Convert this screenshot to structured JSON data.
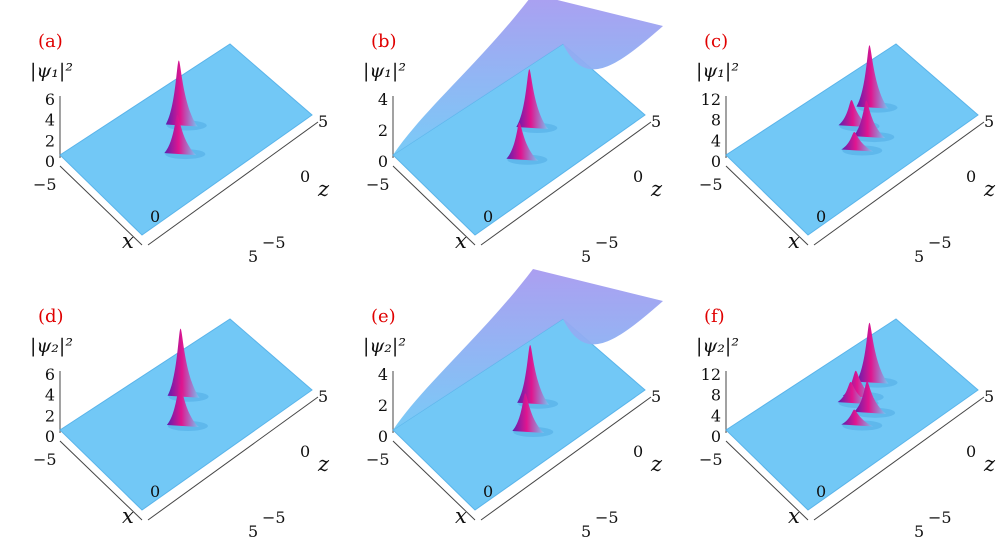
{
  "colors": {
    "surface": "#72c8f6",
    "surface_shade": "#5ab4ea",
    "bg_top": "#a79af0",
    "peak": "#e0158f",
    "peak_dark": "#5a1fb0",
    "label_red": "#e00000"
  },
  "chart_data": [
    {
      "type": "surface",
      "panel_label": "(a)",
      "zlabel": "|ψ₁|²",
      "xlabel": "x",
      "ylabel": "z",
      "xlim": [
        -5,
        5
      ],
      "ylim": [
        -5,
        5
      ],
      "zlim": [
        0,
        6
      ],
      "zticks": [
        "6",
        "4",
        "2",
        "0"
      ],
      "xticks": [
        "−5",
        "0",
        "5"
      ],
      "yticks": [
        "5",
        "0",
        "−5"
      ],
      "background": 0,
      "peaks": [
        {
          "x": 0.3,
          "z": 1.5,
          "height": 6.0
        },
        {
          "x": -0.8,
          "z": -0.6,
          "height": 3.5
        }
      ]
    },
    {
      "type": "surface",
      "panel_label": "(b)",
      "zlabel": "|ψ₁|²",
      "xlabel": "x",
      "ylabel": "z",
      "xlim": [
        -5,
        5
      ],
      "ylim": [
        -5,
        5
      ],
      "zlim": [
        0,
        4
      ],
      "zticks": [
        "4",
        "2",
        "0"
      ],
      "xticks": [
        "−5",
        "0",
        "5"
      ],
      "yticks": [
        "5",
        "0",
        "−5"
      ],
      "background": 1,
      "peaks": [
        {
          "x": 0.8,
          "z": 0.4,
          "height": 3.6
        },
        {
          "x": -0.7,
          "z": -1.5,
          "height": 2.2
        }
      ]
    },
    {
      "type": "surface",
      "panel_label": "(c)",
      "zlabel": "|ψ₁|²",
      "xlabel": "x",
      "ylabel": "z",
      "xlim": [
        -5,
        5
      ],
      "ylim": [
        -5,
        5
      ],
      "zlim": [
        0,
        12
      ],
      "zticks": [
        "12",
        "8",
        "4",
        "0"
      ],
      "xticks": [
        "−5",
        "0",
        "5"
      ],
      "yticks": [
        "5",
        "0",
        "−5"
      ],
      "background": 0,
      "peaks": [
        {
          "x": 1.8,
          "z": 1.6,
          "height": 11.5
        },
        {
          "x": 0.5,
          "z": 1.1,
          "height": 4.5
        },
        {
          "x": 0.6,
          "z": -0.5,
          "height": 6.5
        },
        {
          "x": -0.3,
          "z": -0.9,
          "height": 3.0
        }
      ]
    },
    {
      "type": "surface",
      "panel_label": "(d)",
      "zlabel": "|ψ₂|²",
      "xlabel": "x",
      "ylabel": "z",
      "xlim": [
        -5,
        5
      ],
      "ylim": [
        -5,
        5
      ],
      "zlim": [
        0,
        6
      ],
      "zticks": [
        "6",
        "4",
        "2",
        "0"
      ],
      "xticks": [
        "−5",
        "0",
        "5"
      ],
      "yticks": [
        "5",
        "0",
        "−5"
      ],
      "background": 0,
      "peaks": [
        {
          "x": 0.5,
          "z": 1.7,
          "height": 6.3
        },
        {
          "x": -0.6,
          "z": -0.5,
          "height": 3.8
        }
      ]
    },
    {
      "type": "surface",
      "panel_label": "(e)",
      "zlabel": "|ψ₂|²",
      "xlabel": "x",
      "ylabel": "z",
      "xlim": [
        -5,
        5
      ],
      "ylim": [
        -5,
        5
      ],
      "zlim": [
        0,
        4
      ],
      "zticks": [
        "4",
        "2",
        "0"
      ],
      "xticks": [
        "−5",
        "0",
        "5"
      ],
      "yticks": [
        "5",
        "0",
        "−5"
      ],
      "background": 1,
      "peaks": [
        {
          "x": 0.8,
          "z": 0.3,
          "height": 3.6
        },
        {
          "x": -0.4,
          "z": -1.6,
          "height": 2.3
        }
      ]
    },
    {
      "type": "surface",
      "panel_label": "(f)",
      "zlabel": "|ψ₂|²",
      "xlabel": "x",
      "ylabel": "z",
      "xlim": [
        -5,
        5
      ],
      "ylim": [
        -5,
        5
      ],
      "zlim": [
        0,
        12
      ],
      "zticks": [
        "12",
        "8",
        "4",
        "0"
      ],
      "xticks": [
        "−5",
        "0",
        "5"
      ],
      "yticks": [
        "5",
        "0",
        "−5"
      ],
      "background": 0,
      "peaks": [
        {
          "x": 1.8,
          "z": 1.6,
          "height": 11.0
        },
        {
          "x": 0.8,
          "z": 1.2,
          "height": 4.5
        },
        {
          "x": 0.4,
          "z": 1.0,
          "height": 3.5
        },
        {
          "x": 0.6,
          "z": -0.6,
          "height": 5.5
        },
        {
          "x": -0.3,
          "z": -0.9,
          "height": 2.5
        }
      ]
    }
  ]
}
